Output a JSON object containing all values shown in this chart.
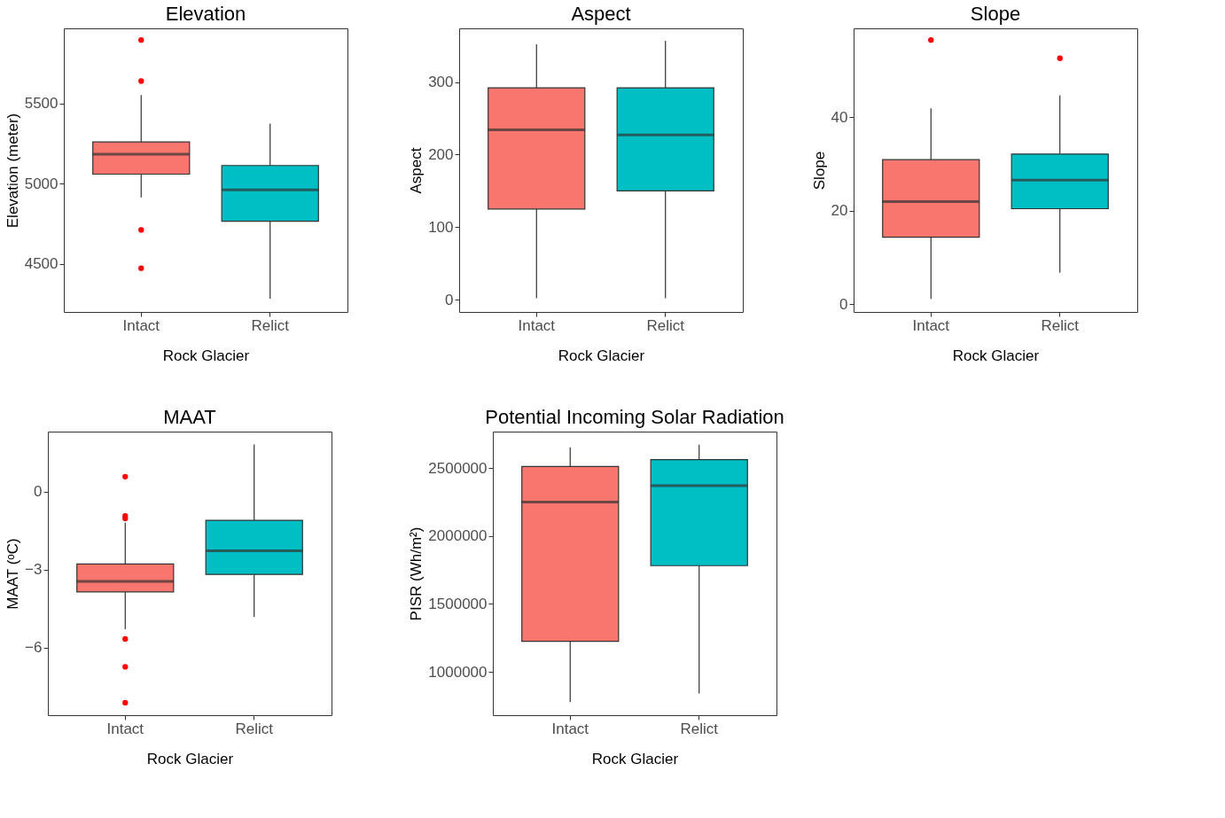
{
  "chart_data": [
    {
      "type": "box",
      "title": "Elevation",
      "xlabel": "Rock Glacier",
      "ylabel": "Elevation (meter)",
      "categories": [
        "Intact",
        "Relict"
      ],
      "colors": [
        "#f8766d",
        "#00bfc4"
      ],
      "ylim": [
        4200,
        5970
      ],
      "yticks": [
        4500,
        5000,
        5500
      ],
      "boxes": [
        {
          "low": 4915,
          "q1": 5060,
          "median": 5185,
          "q3": 5261,
          "high": 5554,
          "outliers": [
            5897,
            5641,
            4712,
            4473
          ]
        },
        {
          "low": 4283,
          "q1": 4766,
          "median": 4962,
          "q3": 5114,
          "high": 5375
        }
      ]
    },
    {
      "type": "box",
      "title": "Aspect",
      "xlabel": "Rock Glacier",
      "ylabel": "Aspect",
      "categories": [
        "Intact",
        "Relict"
      ],
      "colors": [
        "#f8766d",
        "#00bfc4"
      ],
      "ylim": [
        -17,
        374
      ],
      "yticks": [
        0,
        100,
        200,
        300
      ],
      "boxes": [
        {
          "low": 2,
          "q1": 125,
          "median": 234,
          "q3": 292,
          "high": 352
        },
        {
          "low": 2,
          "q1": 150,
          "median": 227,
          "q3": 292,
          "high": 357
        }
      ]
    },
    {
      "type": "box",
      "title": "Slope",
      "xlabel": "Rock Glacier",
      "ylabel": "Slope",
      "categories": [
        "Intact",
        "Relict"
      ],
      "colors": [
        "#f8766d",
        "#00bfc4"
      ],
      "ylim": [
        -1.7,
        59
      ],
      "yticks": [
        0,
        20,
        40
      ],
      "boxes": [
        {
          "low": 1.1,
          "q1": 14.3,
          "median": 21.9,
          "q3": 30.9,
          "high": 41.9,
          "outliers": [
            56.5
          ]
        },
        {
          "low": 6.7,
          "q1": 20.4,
          "median": 26.5,
          "q3": 32.1,
          "high": 44.7,
          "outliers": [
            52.6
          ]
        }
      ]
    },
    {
      "type": "box",
      "title": "MAAT",
      "xlabel": "Rock Glacier",
      "ylabel": "MAAT (ᵒC)",
      "categories": [
        "Intact",
        "Relict"
      ],
      "colors": [
        "#f8766d",
        "#00bfc4"
      ],
      "ylim": [
        -8.6,
        2.3
      ],
      "yticks": [
        -6,
        -3,
        0
      ],
      "boxes": [
        {
          "low": -5.3,
          "q1": -3.86,
          "median": -3.46,
          "q3": -2.79,
          "high": -1.2,
          "outliers": [
            0.57,
            -0.94,
            -1.04,
            -5.67,
            -6.74,
            -8.12
          ]
        },
        {
          "low": -4.83,
          "q1": -3.19,
          "median": -2.28,
          "q3": -1.11,
          "high": 1.81
        }
      ]
    },
    {
      "type": "box",
      "title": "Potential Incoming Solar Radiation",
      "xlabel": "Rock Glacier",
      "ylabel": "PISR (Wh/m²)",
      "categories": [
        "Intact",
        "Relict"
      ],
      "colors": [
        "#f8766d",
        "#00bfc4"
      ],
      "ylim": [
        680000,
        2770000
      ],
      "yticks": [
        1000000,
        1500000,
        2000000,
        2500000
      ],
      "boxes": [
        {
          "low": 776000,
          "q1": 1224000,
          "median": 2250000,
          "q3": 2513000,
          "high": 2654000
        },
        {
          "low": 840000,
          "q1": 1782000,
          "median": 2372000,
          "q3": 2564000,
          "high": 2673000
        }
      ]
    }
  ]
}
